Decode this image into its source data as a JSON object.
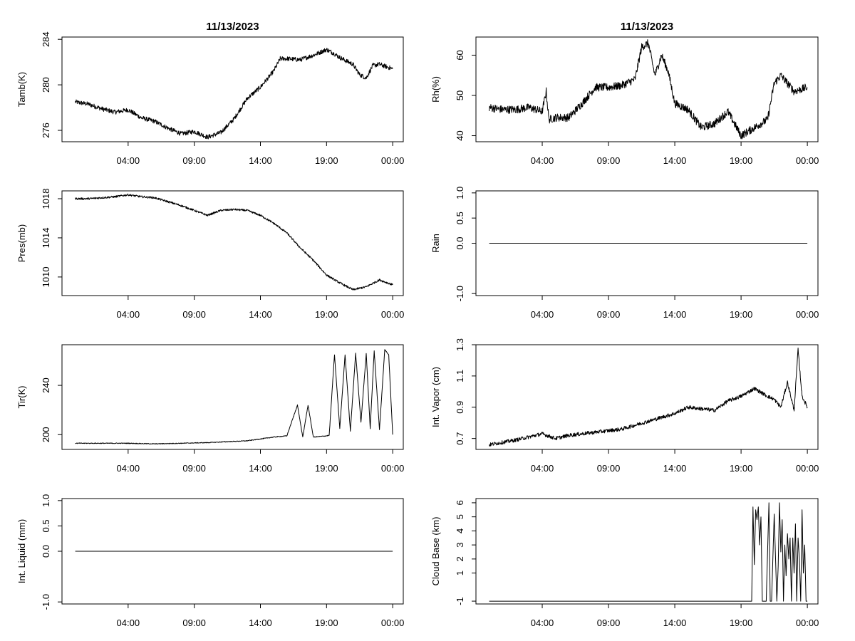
{
  "date_title": "11/13/2023",
  "chart_data": [
    {
      "id": "tamb",
      "type": "line",
      "title": "11/13/2023",
      "ylabel": "Tamb(K)",
      "xlabel": "",
      "ylim": [
        275.0,
        284.2
      ],
      "yticks": [
        "276",
        "280",
        "284"
      ],
      "ytick_values": [
        276,
        280,
        284
      ],
      "xlim": [
        -1.0,
        24.8
      ],
      "xticks": [
        "04:00",
        "09:00",
        "14:00",
        "19:00",
        "00:00"
      ],
      "xtick_values": [
        4,
        9,
        14,
        19,
        24
      ],
      "series": [
        {
          "name": "Tamb",
          "noise": 0.2,
          "x": [
            0,
            1,
            2,
            3,
            4,
            5,
            6,
            7,
            8,
            9,
            10,
            11,
            12,
            13,
            14,
            15,
            15.5,
            16,
            17,
            18,
            19,
            19.5,
            20,
            21,
            21.5,
            22,
            22.5,
            23,
            24
          ],
          "y": [
            278.5,
            278.3,
            277.9,
            277.6,
            277.8,
            277.1,
            276.8,
            276.2,
            275.7,
            275.9,
            275.4,
            275.8,
            277,
            278.8,
            279.8,
            281.2,
            282.3,
            282.3,
            282.2,
            282.6,
            283.1,
            282.8,
            282.4,
            281.8,
            280.9,
            280.6,
            281.7,
            281.8,
            281.4
          ]
        }
      ]
    },
    {
      "id": "rh",
      "type": "line",
      "title": "11/13/2023",
      "ylabel": "Rh(%)",
      "xlabel": "",
      "ylim": [
        38.5,
        64.5
      ],
      "yticks": [
        "40",
        "50",
        "60"
      ],
      "ytick_values": [
        40,
        50,
        60
      ],
      "xlim": [
        -1.0,
        24.8
      ],
      "xticks": [
        "04:00",
        "09:00",
        "14:00",
        "19:00",
        "00:00"
      ],
      "xtick_values": [
        4,
        9,
        14,
        19,
        24
      ],
      "series": [
        {
          "name": "Rh",
          "noise": 1.0,
          "x": [
            0,
            1,
            2,
            3,
            4,
            4.3,
            4.5,
            5,
            6,
            7,
            8,
            9,
            10,
            11,
            11.5,
            12,
            12.5,
            13,
            13.5,
            14,
            15,
            16,
            17,
            18,
            18.5,
            19,
            20,
            21,
            21.5,
            22,
            22.5,
            23,
            24
          ],
          "y": [
            47,
            46.5,
            46.5,
            47,
            46,
            51,
            44,
            44.5,
            44.5,
            48,
            52,
            52,
            52.5,
            54,
            62,
            63,
            55,
            60,
            56,
            48,
            46.5,
            42,
            43,
            46,
            43,
            40,
            42,
            44,
            53,
            55,
            53,
            51,
            52
          ]
        }
      ]
    },
    {
      "id": "pres",
      "type": "line",
      "title": "",
      "ylabel": "Pres(mb)",
      "xlabel": "",
      "ylim": [
        1008.1,
        1018.8
      ],
      "yticks": [
        "1010",
        "1014",
        "1018"
      ],
      "ytick_values": [
        1010,
        1014,
        1018
      ],
      "xlim": [
        -1.0,
        24.8
      ],
      "xticks": [
        "04:00",
        "09:00",
        "14:00",
        "19:00",
        "00:00"
      ],
      "xtick_values": [
        4,
        9,
        14,
        19,
        24
      ],
      "series": [
        {
          "name": "Pres",
          "noise": 0.1,
          "x": [
            0,
            1,
            2,
            3,
            4,
            5,
            6,
            7,
            8,
            9,
            10,
            11,
            12,
            13,
            14,
            15,
            16,
            17,
            18,
            19,
            20,
            21,
            22,
            23,
            24
          ],
          "y": [
            1018,
            1018,
            1018.1,
            1018.2,
            1018.4,
            1018.2,
            1018.1,
            1017.7,
            1017.3,
            1016.8,
            1016.3,
            1016.8,
            1016.9,
            1016.8,
            1016.3,
            1015.5,
            1014.5,
            1013.0,
            1011.7,
            1010.2,
            1009.4,
            1008.7,
            1009.0,
            1009.7,
            1009.2
          ]
        }
      ]
    },
    {
      "id": "rain",
      "type": "line",
      "title": "",
      "ylabel": "Rain",
      "xlabel": "",
      "ylim": [
        -1.04,
        1.04
      ],
      "yticks": [
        "-1.0",
        "0.0",
        "0.5",
        "1.0"
      ],
      "ytick_values": [
        -1.0,
        0.0,
        0.5,
        1.0
      ],
      "xlim": [
        -1.0,
        24.8
      ],
      "xticks": [
        "04:00",
        "09:00",
        "14:00",
        "19:00",
        "00:00"
      ],
      "xtick_values": [
        4,
        9,
        14,
        19,
        24
      ],
      "series": [
        {
          "name": "Rain",
          "noise": 0,
          "x": [
            0,
            24
          ],
          "y": [
            0,
            0
          ]
        }
      ]
    },
    {
      "id": "tir",
      "type": "line",
      "title": "",
      "ylabel": "Tir(K)",
      "xlabel": "",
      "ylim": [
        188,
        273
      ],
      "yticks": [
        "200",
        "240"
      ],
      "ytick_values": [
        200,
        240
      ],
      "xlim": [
        -1.0,
        24.8
      ],
      "xticks": [
        "04:00",
        "09:00",
        "14:00",
        "19:00",
        "00:00"
      ],
      "xtick_values": [
        4,
        9,
        14,
        19,
        24
      ],
      "series": [
        {
          "name": "Tir",
          "noise": 0.3,
          "x": [
            0,
            4,
            6,
            10,
            13,
            15,
            16,
            16.8,
            17.2,
            17.6,
            18,
            19,
            19.2,
            19.6,
            20,
            20.4,
            20.8,
            21.2,
            21.6,
            22,
            22.3,
            22.6,
            23,
            23.4,
            23.7,
            24
          ],
          "y": [
            193,
            193,
            192.5,
            193.5,
            195,
            198,
            199,
            224,
            198,
            224,
            198,
            199,
            199.5,
            265,
            205,
            265,
            203,
            266,
            210,
            266,
            205,
            268,
            204,
            269,
            265,
            200
          ]
        }
      ]
    },
    {
      "id": "vapor",
      "type": "line",
      "title": "",
      "ylabel": "Int. Vapor (cm)",
      "xlabel": "",
      "ylim": [
        0.63,
        1.3
      ],
      "yticks": [
        "0.7",
        "0.9",
        "1.1",
        "1.3"
      ],
      "ytick_values": [
        0.7,
        0.9,
        1.1,
        1.3
      ],
      "xlim": [
        -1.0,
        24.8
      ],
      "xticks": [
        "04:00",
        "09:00",
        "14:00",
        "19:00",
        "00:00"
      ],
      "xtick_values": [
        4,
        9,
        14,
        19,
        24
      ],
      "series": [
        {
          "name": "Int. Vapor",
          "noise": 0.012,
          "x": [
            0,
            2,
            4,
            5,
            6,
            8,
            10,
            12,
            14,
            15,
            16,
            17,
            18,
            19,
            20,
            21,
            21.5,
            22,
            22.5,
            23,
            23.3,
            23.6,
            24
          ],
          "y": [
            0.66,
            0.69,
            0.73,
            0.7,
            0.72,
            0.74,
            0.76,
            0.81,
            0.86,
            0.9,
            0.89,
            0.88,
            0.94,
            0.97,
            1.02,
            0.97,
            0.95,
            0.9,
            1.06,
            0.88,
            1.27,
            0.97,
            0.9
          ]
        }
      ]
    },
    {
      "id": "liquid",
      "type": "line",
      "title": "",
      "ylabel": "Int. Liquid (mm)",
      "xlabel": "",
      "ylim": [
        -1.04,
        1.04
      ],
      "yticks": [
        "-1.0",
        "0.0",
        "0.5",
        "1.0"
      ],
      "ytick_values": [
        -1.0,
        0.0,
        0.5,
        1.0
      ],
      "xlim": [
        -1.0,
        24.8
      ],
      "xticks": [
        "04:00",
        "09:00",
        "14:00",
        "19:00",
        "00:00"
      ],
      "xtick_values": [
        4,
        9,
        14,
        19,
        24
      ],
      "series": [
        {
          "name": "Int. Liquid",
          "noise": 0,
          "x": [
            0,
            24
          ],
          "y": [
            0,
            0
          ]
        }
      ]
    },
    {
      "id": "cloudbase",
      "type": "line",
      "title": "",
      "ylabel": "Cloud Base (km)",
      "xlabel": "",
      "ylim": [
        -1.2,
        6.3
      ],
      "yticks": [
        "-1",
        "1",
        "2",
        "3",
        "4",
        "5",
        "6"
      ],
      "ytick_values": [
        -1,
        1,
        2,
        3,
        4,
        5,
        6
      ],
      "xlim": [
        -1.0,
        24.8
      ],
      "xticks": [
        "04:00",
        "09:00",
        "14:00",
        "19:00",
        "00:00"
      ],
      "xtick_values": [
        4,
        9,
        14,
        19,
        24
      ],
      "series": [
        {
          "name": "Cloud Base",
          "noise": 0,
          "x": [
            0,
            19.8,
            19.9,
            20.0,
            20.1,
            20.2,
            20.3,
            20.4,
            20.5,
            20.6,
            20.7,
            20.9,
            21.1,
            21.2,
            21.3,
            21.5,
            21.7,
            21.8,
            21.9,
            22.0,
            22.1,
            22.2,
            22.3,
            22.4,
            22.5,
            22.6,
            22.7,
            22.8,
            22.9,
            23.0,
            23.1,
            23.2,
            23.3,
            23.4,
            23.5,
            23.6,
            23.7,
            23.8,
            23.9,
            24.0
          ],
          "y": [
            -1,
            -1,
            5.7,
            1.6,
            5.5,
            4.8,
            5.7,
            3.0,
            5.0,
            -1,
            -1,
            -1,
            6.0,
            -1,
            -1,
            5.2,
            -1,
            1.5,
            6.0,
            2.5,
            4.8,
            -1,
            3.0,
            0.8,
            3.8,
            2.0,
            3.5,
            -1,
            3.5,
            1.0,
            4.5,
            -1,
            3.5,
            2.0,
            -1,
            5.5,
            1.0,
            3.0,
            -1,
            -1
          ]
        }
      ]
    }
  ]
}
